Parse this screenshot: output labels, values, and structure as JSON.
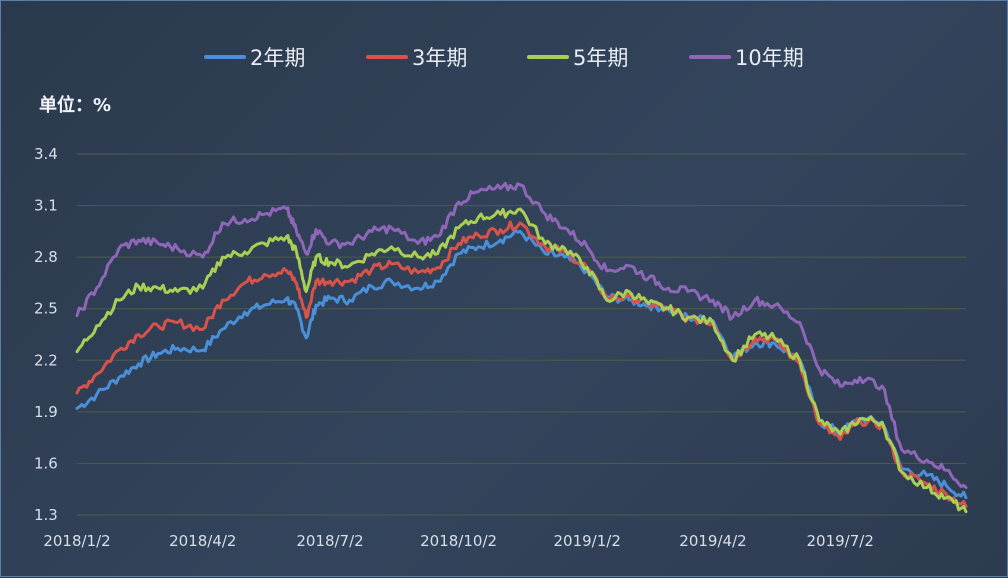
{
  "chart_data": {
    "type": "line",
    "unit_label": "单位：%",
    "ylim": [
      1.3,
      3.4
    ],
    "yticks": [
      "3.4",
      "3.1",
      "2.8",
      "2.5",
      "2.2",
      "1.9",
      "1.6",
      "1.3"
    ],
    "xlim": [
      "2018/1/2",
      "2019/9/30"
    ],
    "xticks": [
      "2018/1/2",
      "2018/4/2",
      "2018/7/2",
      "2018/10/2",
      "2019/1/2",
      "2019/4/2",
      "2019/7/2"
    ],
    "grid": true,
    "legend_position": "top",
    "x": [
      "2018/1/2",
      "2018/1/16",
      "2018/2/1",
      "2018/2/15",
      "2018/3/1",
      "2018/3/15",
      "2018/4/2",
      "2018/4/16",
      "2018/5/2",
      "2018/5/16",
      "2018/6/1",
      "2018/6/8",
      "2018/6/15",
      "2018/6/22",
      "2018/7/2",
      "2018/7/16",
      "2018/8/1",
      "2018/8/15",
      "2018/9/3",
      "2018/9/17",
      "2018/10/2",
      "2018/10/16",
      "2018/11/1",
      "2018/11/15",
      "2018/12/3",
      "2018/12/17",
      "2019/1/2",
      "2019/1/16",
      "2019/2/1",
      "2019/2/15",
      "2019/3/1",
      "2019/3/15",
      "2019/4/2",
      "2019/4/16",
      "2019/5/2",
      "2019/5/16",
      "2019/6/3",
      "2019/6/17",
      "2019/7/2",
      "2019/7/16",
      "2019/8/1",
      "2019/8/15",
      "2019/9/2",
      "2019/9/16",
      "2019/9/30"
    ],
    "series": [
      {
        "name": "2年期",
        "color": "#4a8fd8",
        "values": [
          1.92,
          2.0,
          2.1,
          2.18,
          2.24,
          2.27,
          2.26,
          2.38,
          2.48,
          2.52,
          2.56,
          2.5,
          2.33,
          2.52,
          2.56,
          2.55,
          2.63,
          2.66,
          2.62,
          2.66,
          2.82,
          2.86,
          2.9,
          2.95,
          2.82,
          2.8,
          2.72,
          2.57,
          2.55,
          2.52,
          2.5,
          2.45,
          2.43,
          2.22,
          2.3,
          2.3,
          2.2,
          1.84,
          1.78,
          1.86,
          1.84,
          1.57,
          1.53,
          1.47,
          1.4
        ]
      },
      {
        "name": "3年期",
        "color": "#d9534a",
        "values": [
          2.01,
          2.12,
          2.26,
          2.35,
          2.4,
          2.42,
          2.38,
          2.55,
          2.65,
          2.7,
          2.72,
          2.65,
          2.45,
          2.66,
          2.66,
          2.66,
          2.73,
          2.76,
          2.71,
          2.74,
          2.88,
          2.93,
          2.96,
          3.0,
          2.86,
          2.83,
          2.74,
          2.56,
          2.57,
          2.53,
          2.5,
          2.44,
          2.42,
          2.2,
          2.33,
          2.32,
          2.18,
          1.83,
          1.74,
          1.85,
          1.82,
          1.55,
          1.48,
          1.42,
          1.35
        ]
      },
      {
        "name": "5年期",
        "color": "#a9cf54",
        "values": [
          2.25,
          2.4,
          2.55,
          2.63,
          2.62,
          2.6,
          2.62,
          2.8,
          2.83,
          2.88,
          2.92,
          2.83,
          2.6,
          2.8,
          2.77,
          2.75,
          2.82,
          2.86,
          2.8,
          2.82,
          2.97,
          3.03,
          3.05,
          3.08,
          2.88,
          2.85,
          2.74,
          2.55,
          2.6,
          2.53,
          2.5,
          2.45,
          2.42,
          2.2,
          2.35,
          2.33,
          2.2,
          1.85,
          1.77,
          1.86,
          1.84,
          1.55,
          1.46,
          1.4,
          1.32
        ]
      },
      {
        "name": "10年期",
        "color": "#8e67b8",
        "values": [
          2.46,
          2.62,
          2.85,
          2.9,
          2.88,
          2.85,
          2.8,
          3.0,
          3.02,
          3.05,
          3.08,
          2.95,
          2.82,
          2.96,
          2.88,
          2.88,
          2.95,
          2.97,
          2.88,
          2.92,
          3.12,
          3.18,
          3.2,
          3.22,
          3.05,
          2.97,
          2.86,
          2.72,
          2.75,
          2.68,
          2.62,
          2.6,
          2.55,
          2.45,
          2.55,
          2.52,
          2.42,
          2.15,
          2.05,
          2.1,
          2.05,
          1.68,
          1.62,
          1.56,
          1.46
        ]
      }
    ]
  }
}
